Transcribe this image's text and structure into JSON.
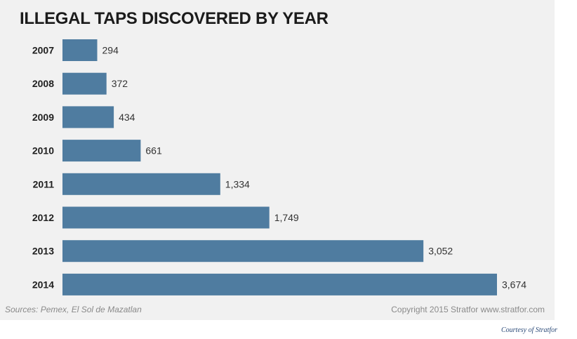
{
  "chart_data": {
    "type": "bar",
    "orientation": "horizontal",
    "title": "ILLEGAL TAPS DISCOVERED BY YEAR",
    "categories": [
      "2007",
      "2008",
      "2009",
      "2010",
      "2011",
      "2012",
      "2013",
      "2014"
    ],
    "values": [
      294,
      372,
      434,
      661,
      1334,
      1749,
      3052,
      3674
    ],
    "value_labels": [
      "294",
      "372",
      "434",
      "661",
      "1,334",
      "1,749",
      "3,052",
      "3,674"
    ],
    "xlim": [
      0,
      3674
    ],
    "grid": false,
    "legend": "none",
    "bar_color": "#4f7ca0"
  },
  "footer": {
    "sources": "Sources: Pemex, El Sol de Mazatlan",
    "copyright": "Copyright 2015 Stratfor www.stratfor.com"
  },
  "credit": "Courtesy of Stratfor"
}
